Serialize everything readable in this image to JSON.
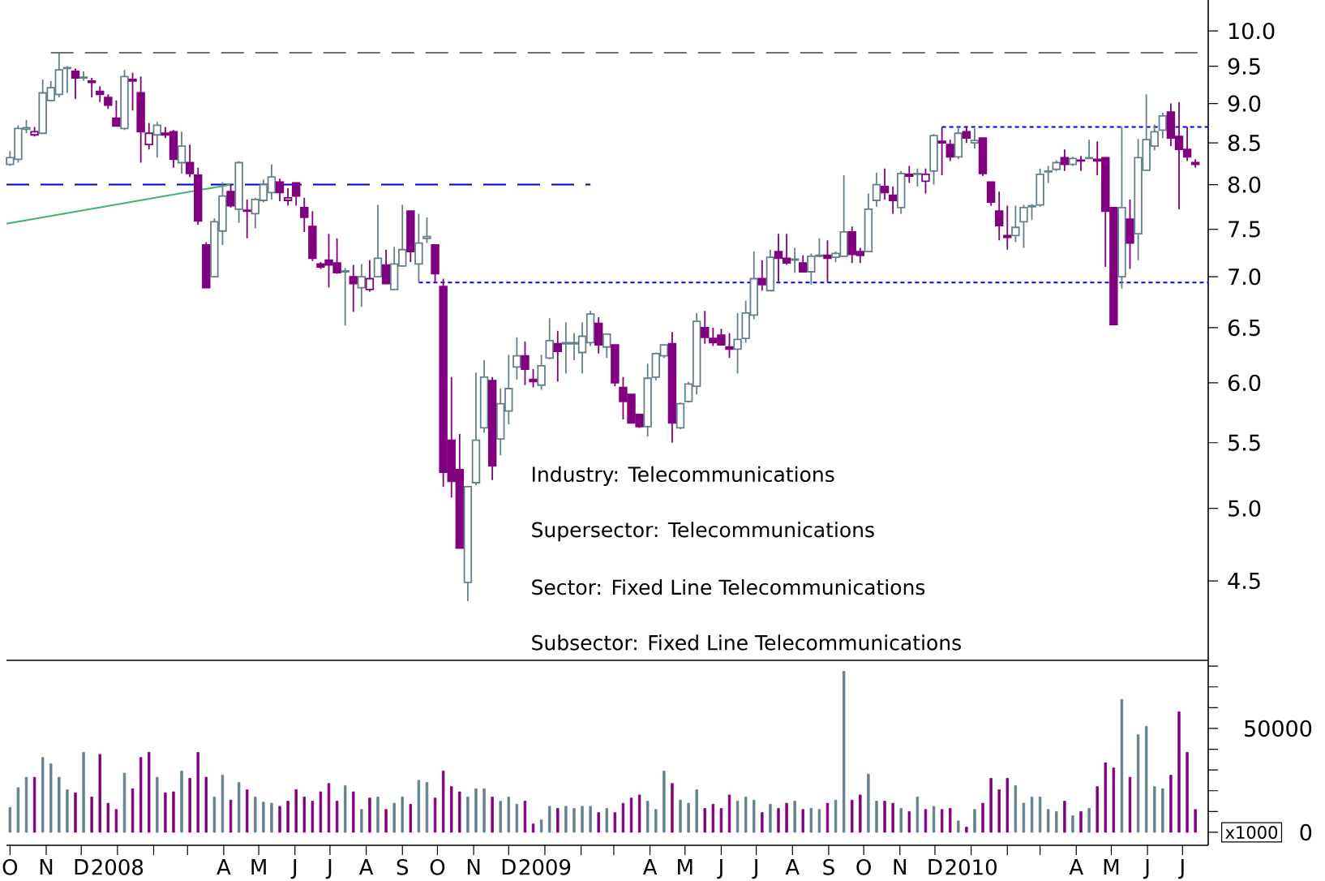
{
  "chart_data": [
    {
      "type": "candlestick",
      "log": "y",
      "tick_labels": "y",
      "xlim": [
        "2007-09-28",
        "2010-07-23"
      ],
      "ylim": [
        4.01,
        10.46
      ],
      "yticks": [
        {
          "value": 4.5,
          "label": "4.5"
        },
        {
          "value": 5,
          "label": "5.0"
        },
        5.5,
        {
          "value": 6,
          "label": "6.0"
        },
        6.5,
        {
          "value": 7,
          "label": "7.0"
        },
        7.5,
        {
          "value": 8,
          "label": "8.0"
        },
        8.5,
        {
          "value": 9,
          "label": "9.0"
        },
        9.5,
        {
          "value": 10,
          "label": "10.0"
        }
      ],
      "x": [
        "2007-10-01",
        "2007-10-08",
        "2007-10-15",
        "2007-10-22",
        "2007-10-29",
        "2007-11-05",
        "2007-11-12",
        "2007-11-19",
        "2007-11-26",
        "2007-12-03",
        "2007-12-10",
        "2007-12-17",
        "2007-12-24",
        "2007-12-31",
        "2008-01-07",
        "2008-01-14",
        "2008-01-21",
        "2008-01-28",
        "2008-02-04",
        "2008-02-11",
        "2008-02-18",
        "2008-02-25",
        "2008-03-03",
        "2008-03-10",
        "2008-03-17",
        "2008-03-24",
        "2008-03-31",
        "2008-04-07",
        "2008-04-14",
        "2008-04-21",
        "2008-04-28",
        "2008-05-05",
        "2008-05-12",
        "2008-05-19",
        "2008-05-26",
        "2008-06-02",
        "2008-06-09",
        "2008-06-16",
        "2008-06-23",
        "2008-06-30",
        "2008-07-07",
        "2008-07-14",
        "2008-07-21",
        "2008-07-28",
        "2008-08-04",
        "2008-08-11",
        "2008-08-18",
        "2008-08-25",
        "2008-09-01",
        "2008-09-08",
        "2008-09-15",
        "2008-09-22",
        "2008-09-29",
        "2008-10-06",
        "2008-10-13",
        "2008-10-20",
        "2008-10-27",
        "2008-11-03",
        "2008-11-10",
        "2008-11-17",
        "2008-11-24",
        "2008-12-01",
        "2008-12-08",
        "2008-12-15",
        "2008-12-22",
        "2008-12-29",
        "2009-01-05",
        "2009-01-12",
        "2009-01-19",
        "2009-01-26",
        "2009-02-02",
        "2009-02-09",
        "2009-02-16",
        "2009-02-23",
        "2009-03-02",
        "2009-03-09",
        "2009-03-16",
        "2009-03-23",
        "2009-03-30",
        "2009-04-06",
        "2009-04-13",
        "2009-04-20",
        "2009-04-27",
        "2009-05-04",
        "2009-05-11",
        "2009-05-18",
        "2009-05-25",
        "2009-06-01",
        "2009-06-08",
        "2009-06-15",
        "2009-06-22",
        "2009-06-29",
        "2009-07-06",
        "2009-07-13",
        "2009-07-20",
        "2009-07-27",
        "2009-08-03",
        "2009-08-10",
        "2009-08-17",
        "2009-08-24",
        "2009-08-31",
        "2009-09-07",
        "2009-09-14",
        "2009-09-21",
        "2009-09-28",
        "2009-10-05",
        "2009-10-12",
        "2009-10-19",
        "2009-10-26",
        "2009-11-02",
        "2009-11-09",
        "2009-11-16",
        "2009-11-23",
        "2009-11-30",
        "2009-12-07",
        "2009-12-14",
        "2009-12-21",
        "2009-12-28",
        "2010-01-04",
        "2010-01-11",
        "2010-01-18",
        "2010-01-25",
        "2010-02-01",
        "2010-02-08",
        "2010-02-15",
        "2010-02-22",
        "2010-03-01",
        "2010-03-08",
        "2010-03-15",
        "2010-03-22",
        "2010-03-29",
        "2010-04-05",
        "2010-04-12",
        "2010-04-19",
        "2010-04-26",
        "2010-05-03",
        "2010-05-10",
        "2010-05-17",
        "2010-05-24",
        "2010-05-31",
        "2010-06-07",
        "2010-06-14",
        "2010-06-21",
        "2010-06-28",
        "2010-07-05",
        "2010-07-12"
      ],
      "ohlc": [
        [
          8.24,
          8.4,
          8.22,
          8.32
        ],
        [
          8.3,
          8.72,
          8.26,
          8.68
        ],
        [
          8.67,
          8.79,
          8.62,
          8.69
        ],
        [
          8.6,
          8.7,
          8.58,
          8.64
        ],
        [
          8.62,
          9.32,
          8.62,
          9.14
        ],
        [
          9.04,
          9.3,
          9.04,
          9.21
        ],
        [
          9.12,
          9.69,
          9.08,
          9.45
        ],
        [
          9.47,
          9.5,
          9.14,
          9.48
        ],
        [
          9.43,
          9.47,
          9.06,
          9.34
        ],
        [
          9.34,
          9.43,
          9.3,
          9.35
        ],
        [
          9.3,
          9.34,
          9.08,
          9.28
        ],
        [
          9.16,
          9.23,
          9.02,
          9.12
        ],
        [
          9.08,
          9.12,
          8.93,
          8.98
        ],
        [
          8.81,
          9.04,
          8.71,
          8.71
        ],
        [
          8.68,
          9.45,
          8.66,
          9.36
        ],
        [
          9.32,
          9.41,
          8.91,
          9.3
        ],
        [
          9.14,
          9.36,
          8.26,
          8.64
        ],
        [
          8.48,
          8.75,
          8.42,
          8.62
        ],
        [
          8.6,
          8.76,
          8.32,
          8.72
        ],
        [
          8.62,
          8.7,
          8.56,
          8.6
        ],
        [
          8.64,
          8.66,
          8.2,
          8.3
        ],
        [
          8.26,
          8.64,
          8.13,
          8.46
        ],
        [
          8.26,
          8.48,
          8.09,
          8.13
        ],
        [
          8.11,
          8.2,
          7.55,
          7.59
        ],
        [
          7.33,
          7.36,
          6.89,
          6.89
        ],
        [
          7.0,
          7.62,
          7.0,
          7.58
        ],
        [
          7.48,
          8.03,
          7.33,
          7.87
        ],
        [
          7.92,
          8.0,
          7.74,
          7.76
        ],
        [
          7.72,
          8.28,
          7.57,
          8.26
        ],
        [
          7.71,
          7.83,
          7.4,
          7.7
        ],
        [
          7.67,
          7.85,
          7.51,
          7.83
        ],
        [
          7.82,
          8.06,
          7.8,
          8.0
        ],
        [
          7.91,
          8.24,
          7.83,
          8.09
        ],
        [
          8.03,
          8.07,
          7.81,
          7.91
        ],
        [
          7.82,
          7.96,
          7.76,
          7.85
        ],
        [
          8.02,
          8.02,
          7.76,
          7.87
        ],
        [
          7.74,
          7.85,
          7.47,
          7.63
        ],
        [
          7.53,
          7.7,
          7.16,
          7.19
        ],
        [
          7.13,
          7.15,
          7.08,
          7.1
        ],
        [
          7.17,
          7.45,
          6.89,
          7.12
        ],
        [
          7.14,
          7.4,
          7.03,
          7.04
        ],
        [
          7.05,
          7.09,
          6.52,
          7.06
        ],
        [
          7.0,
          7.12,
          6.65,
          6.93
        ],
        [
          6.89,
          7.13,
          6.7,
          7.0
        ],
        [
          6.87,
          7.17,
          6.85,
          6.98
        ],
        [
          7.0,
          7.77,
          7.0,
          7.19
        ],
        [
          7.12,
          7.28,
          6.93,
          6.93
        ],
        [
          6.87,
          7.31,
          6.87,
          7.13
        ],
        [
          7.11,
          7.77,
          7.1,
          7.28
        ],
        [
          7.7,
          7.7,
          7.15,
          7.26
        ],
        [
          7.13,
          7.67,
          6.94,
          7.35
        ],
        [
          7.4,
          7.63,
          7.35,
          7.42
        ],
        [
          7.33,
          7.33,
          6.94,
          7.03
        ],
        [
          6.9,
          6.98,
          5.16,
          5.27
        ],
        [
          5.52,
          6.05,
          5.08,
          5.2
        ],
        [
          5.29,
          5.57,
          4.72,
          4.72
        ],
        [
          4.49,
          5.16,
          4.37,
          5.16
        ],
        [
          5.19,
          6.09,
          5.17,
          5.52
        ],
        [
          5.62,
          6.2,
          5.58,
          6.05
        ],
        [
          6.02,
          6.05,
          5.21,
          5.32
        ],
        [
          5.53,
          5.95,
          5.4,
          5.82
        ],
        [
          5.76,
          6.25,
          5.65,
          5.95
        ],
        [
          6.14,
          6.41,
          6.03,
          6.24
        ],
        [
          6.24,
          6.37,
          5.98,
          6.12
        ],
        [
          6.03,
          6.12,
          5.96,
          6.01
        ],
        [
          5.98,
          6.25,
          5.94,
          6.15
        ],
        [
          6.22,
          6.59,
          6.21,
          6.38
        ],
        [
          6.35,
          6.47,
          6.01,
          6.28
        ],
        [
          6.35,
          6.55,
          6.08,
          6.36
        ],
        [
          6.35,
          6.45,
          6.2,
          6.36
        ],
        [
          6.27,
          6.55,
          6.08,
          6.42
        ],
        [
          6.36,
          6.66,
          6.33,
          6.63
        ],
        [
          6.54,
          6.6,
          6.26,
          6.34
        ],
        [
          6.32,
          6.44,
          6.22,
          6.44
        ],
        [
          6.34,
          6.34,
          5.97,
          6.0
        ],
        [
          5.96,
          6.05,
          5.69,
          5.84
        ],
        [
          5.9,
          5.9,
          5.66,
          5.66
        ],
        [
          5.73,
          5.73,
          5.62,
          5.63
        ],
        [
          5.63,
          6.17,
          5.55,
          6.04
        ],
        [
          6.05,
          6.27,
          6.02,
          6.26
        ],
        [
          6.24,
          6.34,
          6.22,
          6.34
        ],
        [
          6.35,
          6.46,
          5.5,
          5.66
        ],
        [
          5.62,
          5.83,
          5.61,
          5.82
        ],
        [
          5.84,
          6.01,
          5.83,
          5.99
        ],
        [
          5.97,
          6.64,
          5.9,
          6.56
        ],
        [
          6.5,
          6.66,
          6.35,
          6.41
        ],
        [
          6.4,
          6.5,
          6.33,
          6.36
        ],
        [
          6.43,
          6.49,
          6.34,
          6.34
        ],
        [
          6.32,
          6.45,
          6.22,
          6.3
        ],
        [
          6.3,
          6.64,
          6.08,
          6.39
        ],
        [
          6.4,
          6.76,
          6.36,
          6.64
        ],
        [
          6.62,
          7.26,
          6.58,
          6.98
        ],
        [
          6.98,
          7.17,
          6.86,
          6.92
        ],
        [
          6.86,
          7.28,
          6.86,
          7.2
        ],
        [
          7.26,
          7.45,
          6.95,
          7.19
        ],
        [
          7.19,
          7.45,
          7.12,
          7.14
        ],
        [
          7.17,
          7.3,
          7.04,
          7.18
        ],
        [
          7.14,
          7.22,
          7.05,
          7.05
        ],
        [
          7.05,
          7.24,
          6.92,
          7.21
        ],
        [
          7.21,
          7.4,
          7.2,
          7.22
        ],
        [
          7.22,
          7.38,
          6.94,
          7.19
        ],
        [
          7.2,
          7.26,
          7.15,
          7.24
        ],
        [
          7.21,
          8.11,
          7.21,
          7.47
        ],
        [
          7.47,
          7.53,
          7.14,
          7.23
        ],
        [
          7.26,
          7.3,
          7.14,
          7.22
        ],
        [
          7.26,
          7.9,
          7.26,
          7.72
        ],
        [
          7.82,
          8.14,
          7.75,
          8.0
        ],
        [
          7.98,
          8.19,
          7.83,
          7.91
        ],
        [
          7.88,
          7.98,
          7.67,
          7.82
        ],
        [
          7.74,
          8.16,
          7.67,
          8.13
        ],
        [
          8.12,
          8.22,
          8.02,
          8.1
        ],
        [
          8.12,
          8.19,
          7.98,
          8.13
        ],
        [
          8.04,
          8.19,
          7.9,
          8.12
        ],
        [
          8.16,
          8.61,
          8.0,
          8.59
        ],
        [
          8.52,
          8.7,
          8.11,
          8.5
        ],
        [
          8.48,
          8.54,
          8.28,
          8.33
        ],
        [
          8.33,
          8.7,
          8.3,
          8.62
        ],
        [
          8.64,
          8.71,
          8.5,
          8.56
        ],
        [
          8.5,
          8.68,
          8.43,
          8.53
        ],
        [
          8.56,
          8.56,
          8.1,
          8.13
        ],
        [
          8.03,
          8.03,
          7.76,
          7.8
        ],
        [
          7.7,
          7.92,
          7.38,
          7.54
        ],
        [
          7.43,
          7.76,
          7.28,
          7.41
        ],
        [
          7.43,
          7.76,
          7.36,
          7.52
        ],
        [
          7.58,
          7.77,
          7.3,
          7.74
        ],
        [
          7.75,
          7.78,
          7.6,
          7.76
        ],
        [
          7.77,
          8.19,
          7.75,
          8.12
        ],
        [
          8.15,
          8.22,
          8.02,
          8.16
        ],
        [
          8.18,
          8.29,
          8.16,
          8.26
        ],
        [
          8.32,
          8.42,
          8.16,
          8.24
        ],
        [
          8.24,
          8.33,
          8.22,
          8.31
        ],
        [
          8.29,
          8.34,
          8.16,
          8.28
        ],
        [
          8.31,
          8.54,
          8.3,
          8.32
        ],
        [
          8.3,
          8.52,
          8.11,
          8.28
        ],
        [
          8.32,
          8.32,
          7.1,
          7.7
        ],
        [
          7.74,
          7.74,
          6.53,
          6.53
        ],
        [
          7.0,
          8.7,
          6.88,
          7.74
        ],
        [
          7.61,
          7.83,
          7.08,
          7.35
        ],
        [
          7.45,
          8.55,
          7.17,
          8.32
        ],
        [
          8.17,
          9.12,
          8.17,
          8.54
        ],
        [
          8.46,
          8.73,
          8.41,
          8.64
        ],
        [
          8.66,
          8.88,
          8.56,
          8.84
        ],
        [
          8.89,
          9.0,
          8.46,
          8.56
        ],
        [
          8.58,
          9.02,
          7.72,
          8.42
        ],
        [
          8.42,
          8.7,
          8.28,
          8.33
        ],
        [
          8.26,
          8.3,
          8.2,
          8.24
        ]
      ],
      "colors": [
        "#64808c",
        "#64808c",
        "#64808c",
        "#800080",
        "#64808c",
        "#64808c",
        "#64808c",
        "#64808c",
        "#800080",
        "#64808c",
        "#800080",
        "#800080",
        "#800080",
        "#800080",
        "#64808c",
        "#800080",
        "#800080",
        "#800080",
        "#64808c",
        "#800080",
        "#800080",
        "#64808c",
        "#800080",
        "#800080",
        "#800080",
        "#64808c",
        "#64808c",
        "#800080",
        "#64808c",
        "#800080",
        "#64808c",
        "#64808c",
        "#64808c",
        "#800080",
        "#800080",
        "#800080",
        "#800080",
        "#800080",
        "#800080",
        "#800080",
        "#800080",
        "#64808c",
        "#800080",
        "#64808c",
        "#800080",
        "#64808c",
        "#800080",
        "#64808c",
        "#64808c",
        "#800080",
        "#64808c",
        "#64808c",
        "#800080",
        "#800080",
        "#800080",
        "#800080",
        "#64808c",
        "#64808c",
        "#64808c",
        "#800080",
        "#64808c",
        "#64808c",
        "#64808c",
        "#800080",
        "#800080",
        "#64808c",
        "#64808c",
        "#800080",
        "#64808c",
        "#64808c",
        "#64808c",
        "#64808c",
        "#800080",
        "#64808c",
        "#800080",
        "#800080",
        "#800080",
        "#800080",
        "#64808c",
        "#64808c",
        "#64808c",
        "#800080",
        "#64808c",
        "#64808c",
        "#64808c",
        "#800080",
        "#800080",
        "#800080",
        "#800080",
        "#64808c",
        "#64808c",
        "#64808c",
        "#800080",
        "#64808c",
        "#800080",
        "#800080",
        "#64808c",
        "#800080",
        "#64808c",
        "#64808c",
        "#800080",
        "#64808c",
        "#64808c",
        "#800080",
        "#800080",
        "#64808c",
        "#64808c",
        "#800080",
        "#800080",
        "#64808c",
        "#800080",
        "#64808c",
        "#800080",
        "#64808c",
        "#800080",
        "#800080",
        "#64808c",
        "#800080",
        "#64808c",
        "#800080",
        "#800080",
        "#800080",
        "#800080",
        "#64808c",
        "#64808c",
        "#64808c",
        "#64808c",
        "#64808c",
        "#64808c",
        "#800080",
        "#64808c",
        "#800080",
        "#64808c",
        "#800080",
        "#800080",
        "#800080",
        "#64808c",
        "#800080",
        "#64808c",
        "#64808c",
        "#64808c",
        "#64808c",
        "#800080",
        "#800080",
        "#800080",
        "#800080"
      ],
      "series": [
        {
          "type": "line",
          "color": "#707070",
          "line_style": "dashed",
          "x": [
            "2007-11-05",
            "2010-07-23"
          ],
          "values": [
            9.69,
            9.69
          ]
        },
        {
          "type": "line",
          "color": "#0000cc",
          "line_style": "dashed",
          "x": [
            "2007-09-28",
            "2009-02-09"
          ],
          "values": [
            8.0,
            8.0
          ]
        },
        {
          "type": "line",
          "color": "#3cb371",
          "line_style": "solid",
          "x": [
            "2007-09-28",
            "2008-04-07"
          ],
          "values": [
            7.56,
            8.0
          ]
        },
        {
          "type": "line",
          "color": "#0000ff",
          "line_style": "dotted",
          "x": [
            "2008-09-15",
            "2010-07-23"
          ],
          "values": [
            6.94,
            6.94
          ]
        },
        {
          "type": "line",
          "color": "#0000ff",
          "line_style": "dotted",
          "x": [
            "2009-12-07",
            "2010-07-23"
          ],
          "values": [
            8.7,
            8.7
          ]
        }
      ],
      "annotations": [
        "Industry: Telecommunications",
        "Supersector: Telecommunications",
        "Sector: Fixed Line Telecommunications",
        "Subsector: Fixed Line Telecommunications"
      ]
    },
    {
      "type": "bar",
      "xlim": [
        "2007-09-28",
        "2010-07-23"
      ],
      "ylim": [
        -6250,
        82800
      ],
      "yticks": [
        0,
        {
          "value": 10000,
          "label": null
        },
        {
          "value": 20000,
          "label": null
        },
        {
          "value": 30000,
          "label": null
        },
        {
          "value": 40000,
          "label": null
        },
        50000,
        {
          "value": 60000,
          "label": null
        },
        {
          "value": 70000,
          "label": null
        },
        {
          "value": 80000,
          "label": null
        }
      ],
      "xticks": [
        {
          "value": "2007-10-01",
          "label": "O"
        },
        {
          "value": "2007-11-01",
          "label": "N"
        },
        {
          "value": "2007-12-01",
          "label": "D"
        },
        {
          "value": "2008-01-01",
          "label": "2008"
        },
        {
          "value": "2008-02-01",
          "label": null
        },
        {
          "value": "2008-03-01",
          "label": null
        },
        {
          "value": "2008-04-01",
          "label": "A"
        },
        {
          "value": "2008-05-01",
          "label": "M"
        },
        {
          "value": "2008-06-01",
          "label": "J"
        },
        {
          "value": "2008-07-01",
          "label": "J"
        },
        {
          "value": "2008-08-01",
          "label": "A"
        },
        {
          "value": "2008-09-01",
          "label": "S"
        },
        {
          "value": "2008-10-01",
          "label": "O"
        },
        {
          "value": "2008-11-01",
          "label": "N"
        },
        {
          "value": "2008-12-01",
          "label": "D"
        },
        {
          "value": "2009-01-01",
          "label": "2009"
        },
        {
          "value": "2009-02-01",
          "label": null
        },
        {
          "value": "2009-03-01",
          "label": null
        },
        {
          "value": "2009-04-01",
          "label": "A"
        },
        {
          "value": "2009-05-01",
          "label": "M"
        },
        {
          "value": "2009-06-01",
          "label": "J"
        },
        {
          "value": "2009-07-01",
          "label": "J"
        },
        {
          "value": "2009-08-01",
          "label": "A"
        },
        {
          "value": "2009-09-01",
          "label": "S"
        },
        {
          "value": "2009-10-01",
          "label": "O"
        },
        {
          "value": "2009-11-01",
          "label": "N"
        },
        {
          "value": "2009-12-01",
          "label": "D"
        },
        {
          "value": "2010-01-01",
          "label": "2010"
        },
        {
          "value": "2010-02-01",
          "label": null
        },
        {
          "value": "2010-03-01",
          "label": null
        },
        {
          "value": "2010-04-01",
          "label": "A"
        },
        {
          "value": "2010-05-01",
          "label": "M"
        },
        {
          "value": "2010-06-01",
          "label": "J"
        },
        {
          "value": "2010-07-01",
          "label": "J"
        }
      ],
      "x": [
        "2007-10-01",
        "2007-10-08",
        "2007-10-15",
        "2007-10-22",
        "2007-10-29",
        "2007-11-05",
        "2007-11-12",
        "2007-11-19",
        "2007-11-26",
        "2007-12-03",
        "2007-12-10",
        "2007-12-17",
        "2007-12-24",
        "2007-12-31",
        "2008-01-07",
        "2008-01-14",
        "2008-01-21",
        "2008-01-28",
        "2008-02-04",
        "2008-02-11",
        "2008-02-18",
        "2008-02-25",
        "2008-03-03",
        "2008-03-10",
        "2008-03-17",
        "2008-03-24",
        "2008-03-31",
        "2008-04-07",
        "2008-04-14",
        "2008-04-21",
        "2008-04-28",
        "2008-05-05",
        "2008-05-12",
        "2008-05-19",
        "2008-05-26",
        "2008-06-02",
        "2008-06-09",
        "2008-06-16",
        "2008-06-23",
        "2008-06-30",
        "2008-07-07",
        "2008-07-14",
        "2008-07-21",
        "2008-07-28",
        "2008-08-04",
        "2008-08-11",
        "2008-08-18",
        "2008-08-25",
        "2008-09-01",
        "2008-09-08",
        "2008-09-15",
        "2008-09-22",
        "2008-09-29",
        "2008-10-06",
        "2008-10-13",
        "2008-10-20",
        "2008-10-27",
        "2008-11-03",
        "2008-11-10",
        "2008-11-17",
        "2008-11-24",
        "2008-12-01",
        "2008-12-08",
        "2008-12-15",
        "2008-12-22",
        "2008-12-29",
        "2009-01-05",
        "2009-01-12",
        "2009-01-19",
        "2009-01-26",
        "2009-02-02",
        "2009-02-09",
        "2009-02-16",
        "2009-02-23",
        "2009-03-02",
        "2009-03-09",
        "2009-03-16",
        "2009-03-23",
        "2009-03-30",
        "2009-04-06",
        "2009-04-13",
        "2009-04-20",
        "2009-04-27",
        "2009-05-04",
        "2009-05-11",
        "2009-05-18",
        "2009-05-25",
        "2009-06-01",
        "2009-06-08",
        "2009-06-15",
        "2009-06-22",
        "2009-06-29",
        "2009-07-06",
        "2009-07-13",
        "2009-07-20",
        "2009-07-27",
        "2009-08-03",
        "2009-08-10",
        "2009-08-17",
        "2009-08-24",
        "2009-08-31",
        "2009-09-07",
        "2009-09-14",
        "2009-09-21",
        "2009-09-28",
        "2009-10-05",
        "2009-10-12",
        "2009-10-19",
        "2009-10-26",
        "2009-11-02",
        "2009-11-09",
        "2009-11-16",
        "2009-11-23",
        "2009-11-30",
        "2009-12-07",
        "2009-12-14",
        "2009-12-21",
        "2009-12-28",
        "2010-01-04",
        "2010-01-11",
        "2010-01-18",
        "2010-01-25",
        "2010-02-01",
        "2010-02-08",
        "2010-02-15",
        "2010-02-22",
        "2010-03-01",
        "2010-03-08",
        "2010-03-15",
        "2010-03-22",
        "2010-03-29",
        "2010-04-05",
        "2010-04-12",
        "2010-04-19",
        "2010-04-26",
        "2010-05-03",
        "2010-05-10",
        "2010-05-17",
        "2010-05-24",
        "2010-05-31",
        "2010-06-07",
        "2010-06-14",
        "2010-06-21",
        "2010-06-28",
        "2010-07-05",
        "2010-07-12"
      ],
      "values": [
        12000,
        21500,
        26500,
        26500,
        36000,
        33000,
        26500,
        20500,
        19000,
        38500,
        17000,
        37500,
        14000,
        11000,
        28500,
        21000,
        36000,
        38500,
        26500,
        19000,
        19500,
        29500,
        26000,
        38500,
        26500,
        17000,
        27500,
        15500,
        24000,
        20500,
        17000,
        14500,
        14000,
        12500,
        15000,
        20500,
        17000,
        15000,
        19500,
        23500,
        15000,
        22500,
        19500,
        11000,
        16500,
        17000,
        11000,
        14000,
        17000,
        13500,
        25000,
        24000,
        16500,
        29500,
        22000,
        19500,
        17000,
        21000,
        21000,
        17000,
        15000,
        17000,
        13500,
        15000,
        4000,
        6000,
        12500,
        11500,
        12500,
        11500,
        12500,
        12500,
        9500,
        11500,
        9500,
        14000,
        16500,
        18000,
        15000,
        11000,
        29500,
        23500,
        15500,
        14000,
        20500,
        11500,
        13500,
        11500,
        18000,
        15000,
        17000,
        15500,
        9500,
        13500,
        11500,
        14000,
        15000,
        11000,
        11500,
        11000,
        14000,
        15500,
        77500,
        15500,
        18000,
        28000,
        15000,
        15000,
        14000,
        11500,
        10000,
        17000,
        11000,
        12500,
        11000,
        11500,
        5500,
        2500,
        11000,
        14000,
        26000,
        20500,
        26000,
        22500,
        14000,
        17000,
        17000,
        11000,
        10000,
        15000,
        8000,
        10000,
        11500,
        22000,
        33500,
        31000,
        64000,
        26500,
        47000,
        51000,
        22000,
        21000,
        27500,
        58000,
        38500,
        11000
      ],
      "colors": [
        "#64808c",
        "#64808c",
        "#64808c",
        "#800080",
        "#64808c",
        "#64808c",
        "#64808c",
        "#64808c",
        "#800080",
        "#64808c",
        "#800080",
        "#800080",
        "#800080",
        "#800080",
        "#64808c",
        "#800080",
        "#800080",
        "#800080",
        "#64808c",
        "#800080",
        "#800080",
        "#64808c",
        "#800080",
        "#800080",
        "#800080",
        "#64808c",
        "#64808c",
        "#800080",
        "#64808c",
        "#800080",
        "#64808c",
        "#64808c",
        "#64808c",
        "#800080",
        "#800080",
        "#800080",
        "#800080",
        "#800080",
        "#800080",
        "#800080",
        "#800080",
        "#64808c",
        "#800080",
        "#64808c",
        "#800080",
        "#64808c",
        "#800080",
        "#64808c",
        "#64808c",
        "#800080",
        "#64808c",
        "#64808c",
        "#800080",
        "#800080",
        "#800080",
        "#800080",
        "#64808c",
        "#64808c",
        "#64808c",
        "#800080",
        "#64808c",
        "#64808c",
        "#64808c",
        "#800080",
        "#800080",
        "#64808c",
        "#64808c",
        "#800080",
        "#64808c",
        "#64808c",
        "#64808c",
        "#64808c",
        "#800080",
        "#64808c",
        "#800080",
        "#800080",
        "#800080",
        "#800080",
        "#64808c",
        "#64808c",
        "#64808c",
        "#800080",
        "#64808c",
        "#64808c",
        "#64808c",
        "#800080",
        "#800080",
        "#800080",
        "#800080",
        "#64808c",
        "#64808c",
        "#64808c",
        "#800080",
        "#64808c",
        "#800080",
        "#800080",
        "#64808c",
        "#800080",
        "#64808c",
        "#64808c",
        "#800080",
        "#64808c",
        "#64808c",
        "#800080",
        "#800080",
        "#64808c",
        "#64808c",
        "#800080",
        "#800080",
        "#64808c",
        "#800080",
        "#64808c",
        "#800080",
        "#64808c",
        "#800080",
        "#800080",
        "#64808c",
        "#800080",
        "#64808c",
        "#800080",
        "#800080",
        "#800080",
        "#800080",
        "#64808c",
        "#64808c",
        "#64808c",
        "#64808c",
        "#64808c",
        "#64808c",
        "#800080",
        "#64808c",
        "#800080",
        "#64808c",
        "#800080",
        "#800080",
        "#800080",
        "#64808c",
        "#800080",
        "#64808c",
        "#64808c",
        "#64808c",
        "#64808c",
        "#800080",
        "#800080",
        "#800080",
        "#800080"
      ],
      "annotations": [
        "x1000"
      ]
    }
  ]
}
